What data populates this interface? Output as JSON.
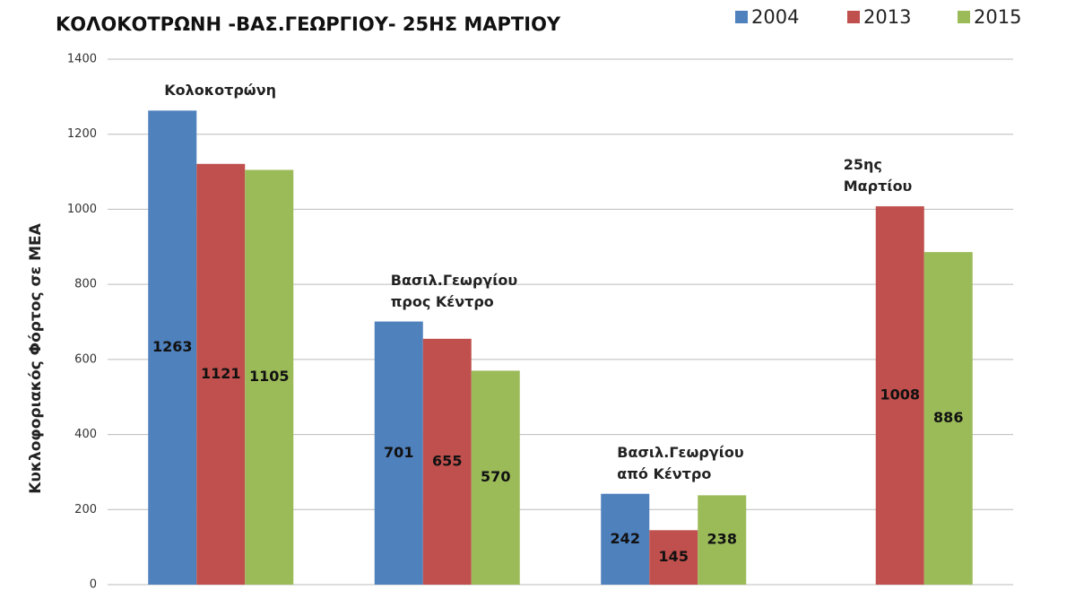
{
  "chart_data": {
    "type": "bar",
    "title": "ΚΟΛΟΚΟΤΡΩΝΗ -ΒΑΣ.ΓΕΩΡΓΙΟΥ- 25ΗΣ ΜΑΡΤΙΟΥ",
    "y_label": "Κυκλοφοριακός Φόρτος σε ΜΕΑ",
    "categories": [
      "Κολοκοτρώνη",
      "Βασιλ.Γεωργίου\nπρος Κέντρο",
      "Βασιλ.Γεωργίου\nαπό Κέντρο",
      "25ης\nΜαρτίου"
    ],
    "series": [
      {
        "name": "2004",
        "color": "#4f81bd",
        "values": [
          1263,
          701,
          242,
          null
        ]
      },
      {
        "name": "2013",
        "color": "#c0504d",
        "values": [
          1121,
          655,
          145,
          1008
        ]
      },
      {
        "name": "2015",
        "color": "#9bbb59",
        "values": [
          1105,
          570,
          238,
          886
        ]
      }
    ],
    "ylim": [
      0,
      1400
    ],
    "yticks": [
      0,
      200,
      400,
      600,
      800,
      1000,
      1200,
      1400
    ],
    "grid": true,
    "legend": "top-right"
  }
}
